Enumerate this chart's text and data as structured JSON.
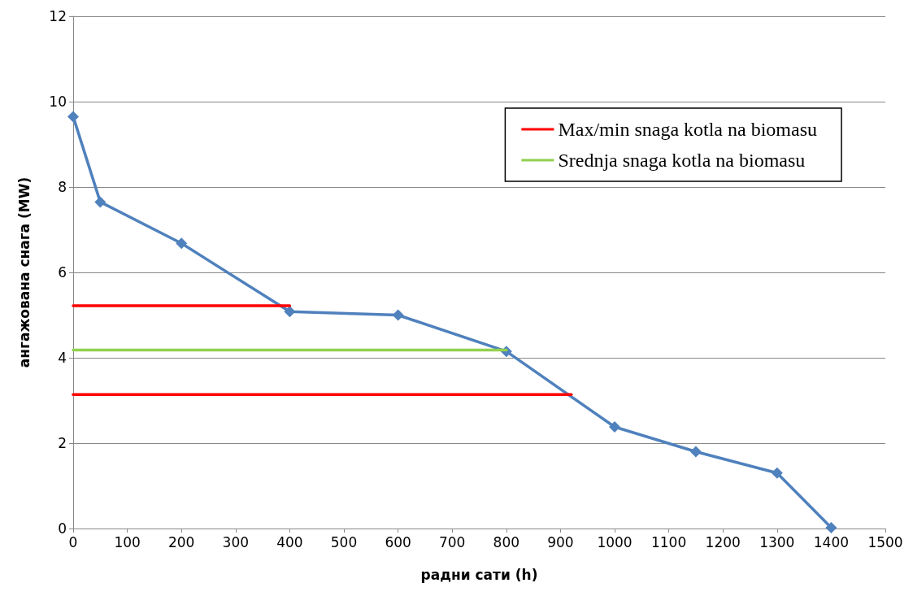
{
  "chart_data": {
    "type": "line",
    "xlabel": "радни сати (h)",
    "ylabel": "ангажована снага (MW)",
    "xlim": [
      0,
      1500
    ],
    "xticks": [
      0,
      100,
      200,
      300,
      400,
      500,
      600,
      700,
      800,
      900,
      1000,
      1100,
      1200,
      1300,
      1400,
      1500
    ],
    "ylim": [
      0,
      12
    ],
    "yticks": [
      0,
      2,
      4,
      6,
      8,
      10,
      12
    ],
    "grid": "y",
    "legend": "top right",
    "marker": "diamond",
    "series": [
      {
        "color": "#4f81bd",
        "x": [
          0,
          50,
          200,
          400,
          600,
          800,
          1000,
          1150,
          1300,
          1400
        ],
        "values": [
          9.65,
          7.65,
          6.68,
          5.08,
          5.0,
          4.15,
          2.38,
          1.8,
          1.3,
          0.02
        ]
      },
      {
        "name": "Max/min snaga kotla na biomasu",
        "color": "#ff0000",
        "marker": "none",
        "x": [
          0,
          400
        ],
        "values": [
          5.22,
          5.22
        ]
      },
      {
        "color": "#ff0000",
        "marker": "none",
        "x": [
          0,
          920
        ],
        "values": [
          3.14,
          3.14
        ]
      },
      {
        "name": "Srednja snaga kotla na biomasu",
        "color": "#92d050",
        "marker": "none",
        "x": [
          0,
          800
        ],
        "values": [
          4.18,
          4.18
        ]
      }
    ]
  }
}
